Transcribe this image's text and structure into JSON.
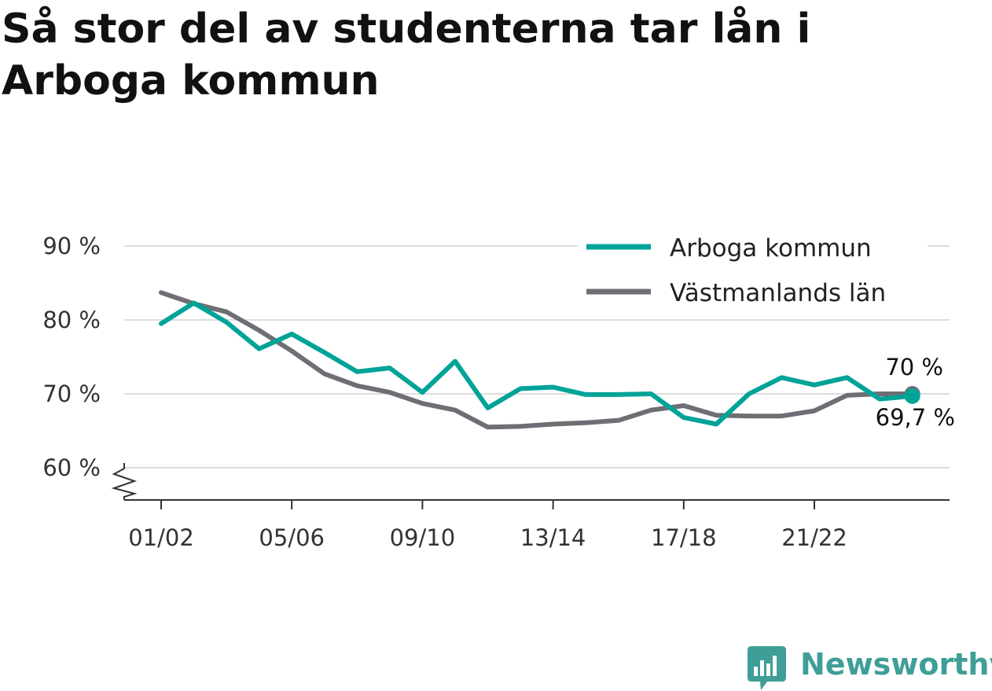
{
  "title": "Så stor del av studenterna tar lån i Arboga kommun",
  "brand": "Newsworthy",
  "chart_data": {
    "type": "line",
    "title": "Så stor del av studenterna tar lån i Arboga kommun",
    "x_tick_labels": [
      "01/02",
      "05/06",
      "09/10",
      "13/14",
      "17/18",
      "21/22"
    ],
    "y_tick_labels": [
      "60 %",
      "70 %",
      "80 %",
      "90 %"
    ],
    "ylim": [
      56,
      90
    ],
    "yticks": [
      60,
      70,
      80,
      90
    ],
    "axis_break": true,
    "grid": true,
    "legend_position": "top-right",
    "x": [
      "01/02",
      "02/03",
      "03/04",
      "04/05",
      "05/06",
      "06/07",
      "07/08",
      "08/09",
      "09/10",
      "10/11",
      "11/12",
      "12/13",
      "13/14",
      "14/15",
      "15/16",
      "16/17",
      "17/18",
      "18/19",
      "19/20",
      "20/21",
      "21/22",
      "22/23",
      "23/24",
      "24/25"
    ],
    "series": [
      {
        "name": "Arboga kommun",
        "color": "#00a398",
        "values": [
          79.5,
          82.3,
          79.7,
          76.1,
          78.1,
          75.6,
          73.0,
          73.5,
          70.2,
          74.4,
          68.1,
          70.7,
          70.9,
          69.9,
          69.9,
          70.0,
          66.8,
          65.9,
          70.0,
          72.2,
          71.2,
          72.2,
          69.3,
          69.7
        ],
        "end_label": "69,7 %"
      },
      {
        "name": "Västmanlands län",
        "color": "#6f6e74",
        "values": [
          83.7,
          82.2,
          81.1,
          78.6,
          75.8,
          72.7,
          71.1,
          70.2,
          68.7,
          67.8,
          65.5,
          65.6,
          65.9,
          66.1,
          66.4,
          67.8,
          68.4,
          67.1,
          67.0,
          67.0,
          67.7,
          69.8,
          70.0,
          70.0
        ],
        "end_label": "70 %"
      }
    ]
  }
}
